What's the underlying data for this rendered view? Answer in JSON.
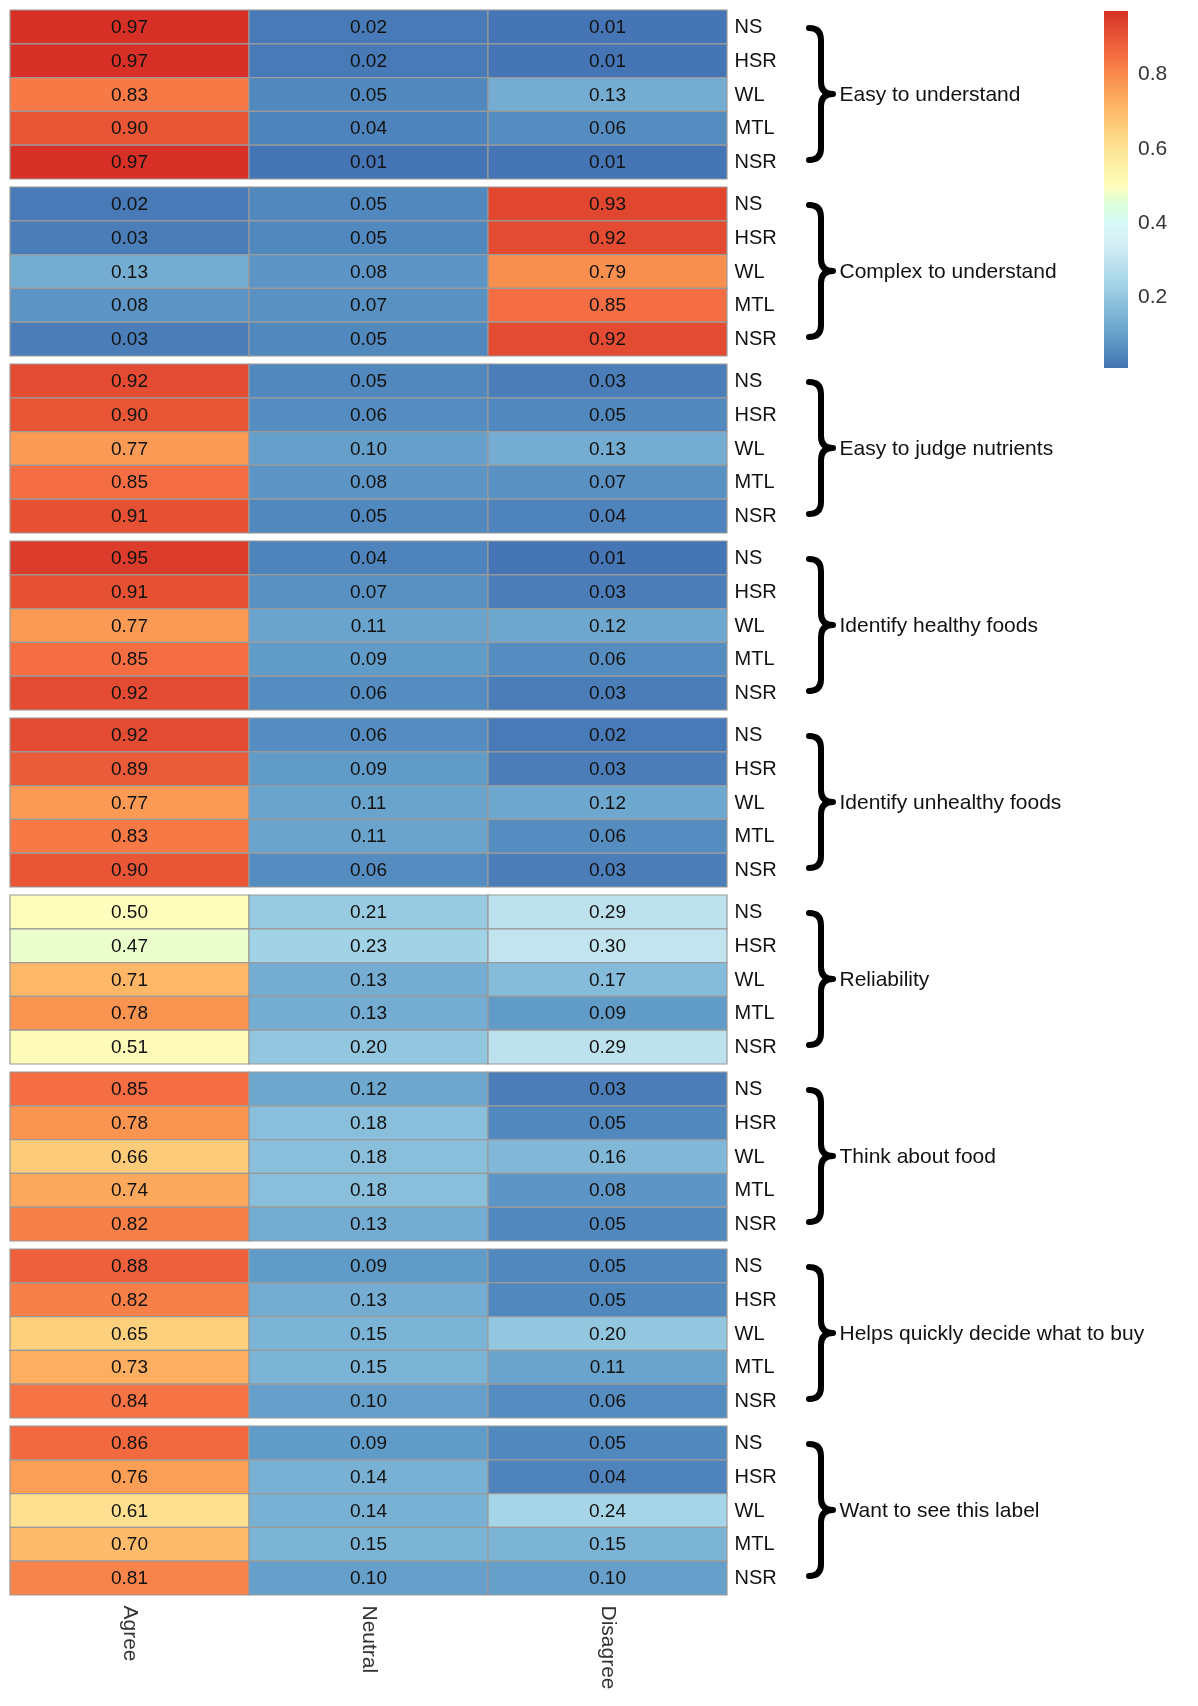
{
  "chart_data": [
    {
      "type": "heatmap",
      "ylabel": "Easy to understand",
      "categories": [
        null,
        null,
        null
      ],
      "y_categories": [
        "NS",
        "HSR",
        "WL",
        "MTL",
        "NSR"
      ],
      "cells": [
        [
          0.97,
          0.02,
          0.01
        ],
        [
          0.97,
          0.02,
          0.01
        ],
        [
          0.83,
          0.05,
          0.13
        ],
        [
          0.9,
          0.04,
          0.06
        ],
        [
          0.97,
          0.01,
          0.01
        ]
      ],
      "cell_labels": [
        [
          "0.97",
          "0.02",
          "0.01"
        ],
        [
          "0.97",
          "0.02",
          "0.01"
        ],
        [
          "0.83",
          "0.05",
          "0.13"
        ],
        [
          "0.90",
          "0.04",
          "0.06"
        ],
        [
          "0.97",
          "0.01",
          "0.01"
        ]
      ],
      "clim": [
        0.01,
        0.97
      ],
      "cticks": [
        0.2,
        0.4,
        0.6,
        0.8
      ],
      "tick_labels": "y"
    },
    {
      "type": "heatmap",
      "ylabel": "Complex to understand",
      "categories": [
        null,
        null,
        null
      ],
      "y_categories": [
        "NS",
        "HSR",
        "WL",
        "MTL",
        "NSR"
      ],
      "cells": [
        [
          0.02,
          0.05,
          0.93
        ],
        [
          0.03,
          0.05,
          0.92
        ],
        [
          0.13,
          0.08,
          0.79
        ],
        [
          0.08,
          0.07,
          0.85
        ],
        [
          0.03,
          0.05,
          0.92
        ]
      ],
      "cell_labels": [
        [
          "0.02",
          "0.05",
          "0.93"
        ],
        [
          "0.03",
          "0.05",
          "0.92"
        ],
        [
          "0.13",
          "0.08",
          "0.79"
        ],
        [
          "0.08",
          "0.07",
          "0.85"
        ],
        [
          "0.03",
          "0.05",
          "0.92"
        ]
      ],
      "tick_labels": "y"
    },
    {
      "type": "heatmap",
      "ylabel": "Easy to judge nutrients",
      "categories": [
        null,
        null,
        null
      ],
      "y_categories": [
        "NS",
        "HSR",
        "WL",
        "MTL",
        "NSR"
      ],
      "cells": [
        [
          0.92,
          0.05,
          0.03
        ],
        [
          0.9,
          0.06,
          0.05
        ],
        [
          0.77,
          0.1,
          0.13
        ],
        [
          0.85,
          0.08,
          0.07
        ],
        [
          0.91,
          0.05,
          0.04
        ]
      ],
      "cell_labels": [
        [
          "0.92",
          "0.05",
          "0.03"
        ],
        [
          "0.90",
          "0.06",
          "0.05"
        ],
        [
          "0.77",
          "0.10",
          "0.13"
        ],
        [
          "0.85",
          "0.08",
          "0.07"
        ],
        [
          "0.91",
          "0.05",
          "0.04"
        ]
      ],
      "tick_labels": "y"
    },
    {
      "type": "heatmap",
      "ylabel": "Identify healthy foods",
      "categories": [
        null,
        null,
        null
      ],
      "y_categories": [
        "NS",
        "HSR",
        "WL",
        "MTL",
        "NSR"
      ],
      "cells": [
        [
          0.95,
          0.04,
          0.01
        ],
        [
          0.91,
          0.07,
          0.03
        ],
        [
          0.77,
          0.11,
          0.12
        ],
        [
          0.85,
          0.09,
          0.06
        ],
        [
          0.92,
          0.06,
          0.03
        ]
      ],
      "cell_labels": [
        [
          "0.95",
          "0.04",
          "0.01"
        ],
        [
          "0.91",
          "0.07",
          "0.03"
        ],
        [
          "0.77",
          "0.11",
          "0.12"
        ],
        [
          "0.85",
          "0.09",
          "0.06"
        ],
        [
          "0.92",
          "0.06",
          "0.03"
        ]
      ],
      "tick_labels": "y"
    },
    {
      "type": "heatmap",
      "ylabel": "Identify unhealthy foods",
      "categories": [
        null,
        null,
        null
      ],
      "y_categories": [
        "NS",
        "HSR",
        "WL",
        "MTL",
        "NSR"
      ],
      "cells": [
        [
          0.92,
          0.06,
          0.02
        ],
        [
          0.89,
          0.09,
          0.03
        ],
        [
          0.77,
          0.11,
          0.12
        ],
        [
          0.83,
          0.11,
          0.06
        ],
        [
          0.9,
          0.06,
          0.03
        ]
      ],
      "cell_labels": [
        [
          "0.92",
          "0.06",
          "0.02"
        ],
        [
          "0.89",
          "0.09",
          "0.03"
        ],
        [
          "0.77",
          "0.11",
          "0.12"
        ],
        [
          "0.83",
          "0.11",
          "0.06"
        ],
        [
          "0.90",
          "0.06",
          "0.03"
        ]
      ],
      "tick_labels": "y"
    },
    {
      "type": "heatmap",
      "ylabel": "Reliability",
      "categories": [
        null,
        null,
        null
      ],
      "y_categories": [
        "NS",
        "HSR",
        "WL",
        "MTL",
        "NSR"
      ],
      "cells": [
        [
          0.5,
          0.21,
          0.29
        ],
        [
          0.47,
          0.23,
          0.3
        ],
        [
          0.71,
          0.13,
          0.17
        ],
        [
          0.78,
          0.13,
          0.09
        ],
        [
          0.51,
          0.2,
          0.29
        ]
      ],
      "cell_labels": [
        [
          "0.50",
          "0.21",
          "0.29"
        ],
        [
          "0.47",
          "0.23",
          "0.30"
        ],
        [
          "0.71",
          "0.13",
          "0.17"
        ],
        [
          "0.78",
          "0.13",
          "0.09"
        ],
        [
          "0.51",
          "0.20",
          "0.29"
        ]
      ],
      "tick_labels": "y"
    },
    {
      "type": "heatmap",
      "ylabel": "Think about food",
      "categories": [
        null,
        null,
        null
      ],
      "y_categories": [
        "NS",
        "HSR",
        "WL",
        "MTL",
        "NSR"
      ],
      "cells": [
        [
          0.85,
          0.12,
          0.03
        ],
        [
          0.78,
          0.18,
          0.05
        ],
        [
          0.66,
          0.18,
          0.16
        ],
        [
          0.74,
          0.18,
          0.08
        ],
        [
          0.82,
          0.13,
          0.05
        ]
      ],
      "cell_labels": [
        [
          "0.85",
          "0.12",
          "0.03"
        ],
        [
          "0.78",
          "0.18",
          "0.05"
        ],
        [
          "0.66",
          "0.18",
          "0.16"
        ],
        [
          "0.74",
          "0.18",
          "0.08"
        ],
        [
          "0.82",
          "0.13",
          "0.05"
        ]
      ],
      "tick_labels": "y"
    },
    {
      "type": "heatmap",
      "ylabel": "Helps quickly decide what to buy",
      "categories": [
        null,
        null,
        null
      ],
      "y_categories": [
        "NS",
        "HSR",
        "WL",
        "MTL",
        "NSR"
      ],
      "cells": [
        [
          0.88,
          0.09,
          0.05
        ],
        [
          0.82,
          0.13,
          0.05
        ],
        [
          0.65,
          0.15,
          0.2
        ],
        [
          0.73,
          0.15,
          0.11
        ],
        [
          0.84,
          0.1,
          0.06
        ]
      ],
      "cell_labels": [
        [
          "0.88",
          "0.09",
          "0.05"
        ],
        [
          "0.82",
          "0.13",
          "0.05"
        ],
        [
          "0.65",
          "0.15",
          "0.20"
        ],
        [
          "0.73",
          "0.15",
          "0.11"
        ],
        [
          "0.84",
          "0.10",
          "0.06"
        ]
      ],
      "tick_labels": "y"
    },
    {
      "type": "heatmap",
      "ylabel": "Want to see this label",
      "categories": [
        "Agree",
        "Neutral",
        "Disagree"
      ],
      "y_categories": [
        "NS",
        "HSR",
        "WL",
        "MTL",
        "NSR"
      ],
      "cells": [
        [
          0.86,
          0.09,
          0.05
        ],
        [
          0.76,
          0.14,
          0.04
        ],
        [
          0.61,
          0.14,
          0.24
        ],
        [
          0.7,
          0.15,
          0.15
        ],
        [
          0.81,
          0.1,
          0.1
        ]
      ],
      "cell_labels": [
        [
          "0.86",
          "0.09",
          "0.05"
        ],
        [
          "0.76",
          "0.14",
          "0.04"
        ],
        [
          "0.61",
          "0.14",
          "0.24"
        ],
        [
          "0.70",
          "0.15",
          "0.15"
        ],
        [
          "0.81",
          "0.10",
          "0.10"
        ]
      ]
    }
  ]
}
